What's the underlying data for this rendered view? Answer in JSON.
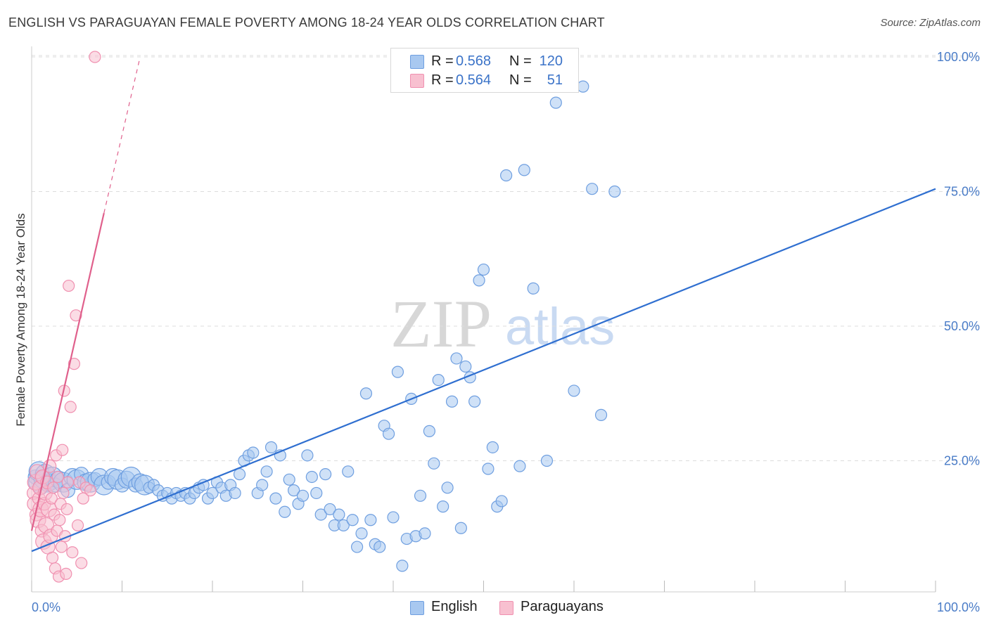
{
  "title": "ENGLISH VS PARAGUAYAN FEMALE POVERTY AMONG 18-24 YEAR OLDS CORRELATION CHART",
  "source": "Source: ZipAtlas.com",
  "watermark": {
    "zip": "ZIP",
    "atlas": "atlas"
  },
  "legend": {
    "english": {
      "r_label": "R =",
      "r_value": "0.568",
      "n_label": "N =",
      "n_value": "120"
    },
    "paraguayan": {
      "r_label": "R =",
      "r_value": "0.564",
      "n_label": "N =",
      "n_value": "51"
    }
  },
  "bottom_legend": {
    "english": "English",
    "paraguayan": "Paraguayans"
  },
  "colors": {
    "english_fill": "#a8c8f0",
    "english_stroke": "#6f9fe0",
    "english_line": "#2f6fd0",
    "paraguayan_fill": "#f8c0d0",
    "paraguayan_stroke": "#f090b0",
    "paraguayan_line": "#e0608c",
    "grid": "#dddddd",
    "axis_text": "#4a7cc7"
  },
  "chart_data": {
    "type": "scatter",
    "title": "ENGLISH VS PARAGUAYAN FEMALE POVERTY AMONG 18-24 YEAR OLDS CORRELATION CHART",
    "xlabel": "",
    "ylabel": "Female Poverty Among 18-24 Year Olds",
    "xlim": [
      0,
      100
    ],
    "ylim": [
      0,
      102
    ],
    "x_tick_labels": [
      "0.0%",
      "100.0%"
    ],
    "y_ticks": [
      25,
      50,
      75,
      100
    ],
    "y_tick_labels": [
      "25.0%",
      "50.0%",
      "75.0%",
      "100.0%"
    ],
    "grid": true,
    "legend_position": "top-center",
    "series": [
      {
        "name": "English",
        "R": 0.568,
        "N": 120,
        "trend": {
          "x": [
            0,
            100
          ],
          "y": [
            8.2,
            75.5
          ],
          "style": "solid"
        },
        "points": [
          [
            0.4,
            22.0
          ],
          [
            0.6,
            21.0
          ],
          [
            0.8,
            23.0
          ],
          [
            1.0,
            20.0
          ],
          [
            1.2,
            21.5
          ],
          [
            1.5,
            22.5
          ],
          [
            1.8,
            20.5
          ],
          [
            2.0,
            21.0
          ],
          [
            2.3,
            22.0
          ],
          [
            2.6,
            20.5
          ],
          [
            3.0,
            21.5
          ],
          [
            3.5,
            21.0
          ],
          [
            4.0,
            19.5
          ],
          [
            4.5,
            22.0
          ],
          [
            5.0,
            21.5
          ],
          [
            5.5,
            22.5
          ],
          [
            6.0,
            21.0
          ],
          [
            6.5,
            21.0
          ],
          [
            7.0,
            21.5
          ],
          [
            7.5,
            22.0
          ],
          [
            8.0,
            20.5
          ],
          [
            8.5,
            21.0
          ],
          [
            9.0,
            22.0
          ],
          [
            9.5,
            21.5
          ],
          [
            10.0,
            20.5
          ],
          [
            10.5,
            21.5
          ],
          [
            11.0,
            22.0
          ],
          [
            11.5,
            20.5
          ],
          [
            12.0,
            21.0
          ],
          [
            12.5,
            20.5
          ],
          [
            13.0,
            20.0
          ],
          [
            13.5,
            20.5
          ],
          [
            14.0,
            19.5
          ],
          [
            14.5,
            18.5
          ],
          [
            15.0,
            19.0
          ],
          [
            15.5,
            18.0
          ],
          [
            16.0,
            19.0
          ],
          [
            16.5,
            18.5
          ],
          [
            17.0,
            19.0
          ],
          [
            17.5,
            18.0
          ],
          [
            18.0,
            19.0
          ],
          [
            18.5,
            20.0
          ],
          [
            19.0,
            20.5
          ],
          [
            19.5,
            18.0
          ],
          [
            20.0,
            19.0
          ],
          [
            20.5,
            21.0
          ],
          [
            21.0,
            20.0
          ],
          [
            21.5,
            18.5
          ],
          [
            22.0,
            20.5
          ],
          [
            22.5,
            19.0
          ],
          [
            23.0,
            22.5
          ],
          [
            23.5,
            25.0
          ],
          [
            24.0,
            26.0
          ],
          [
            24.5,
            26.5
          ],
          [
            25.0,
            19.0
          ],
          [
            25.5,
            20.5
          ],
          [
            26.0,
            23.0
          ],
          [
            26.5,
            27.5
          ],
          [
            27.0,
            18.0
          ],
          [
            27.5,
            26.0
          ],
          [
            28.0,
            15.5
          ],
          [
            28.5,
            21.5
          ],
          [
            29.0,
            19.5
          ],
          [
            29.5,
            17.0
          ],
          [
            30.0,
            18.5
          ],
          [
            30.5,
            26.0
          ],
          [
            31.0,
            22.0
          ],
          [
            31.5,
            19.0
          ],
          [
            32.0,
            15.0
          ],
          [
            32.5,
            22.5
          ],
          [
            33.0,
            16.0
          ],
          [
            33.5,
            13.0
          ],
          [
            34.0,
            15.0
          ],
          [
            34.5,
            13.0
          ],
          [
            35.0,
            23.0
          ],
          [
            35.5,
            14.0
          ],
          [
            36.0,
            9.0
          ],
          [
            36.5,
            11.5
          ],
          [
            37.0,
            37.5
          ],
          [
            37.5,
            14.0
          ],
          [
            38.0,
            9.5
          ],
          [
            38.5,
            9.0
          ],
          [
            39.0,
            31.5
          ],
          [
            39.5,
            30.0
          ],
          [
            40.0,
            14.5
          ],
          [
            40.5,
            41.5
          ],
          [
            41.0,
            5.5
          ],
          [
            41.5,
            10.5
          ],
          [
            42.0,
            36.5
          ],
          [
            42.5,
            11.0
          ],
          [
            43.0,
            18.5
          ],
          [
            43.5,
            11.5
          ],
          [
            44.0,
            30.5
          ],
          [
            44.5,
            24.5
          ],
          [
            45.0,
            40.0
          ],
          [
            45.5,
            16.5
          ],
          [
            46.0,
            20.0
          ],
          [
            46.5,
            36.0
          ],
          [
            47.0,
            44.0
          ],
          [
            47.5,
            12.5
          ],
          [
            48.0,
            42.5
          ],
          [
            48.5,
            40.5
          ],
          [
            49.0,
            36.0
          ],
          [
            49.5,
            58.5
          ],
          [
            50.0,
            60.5
          ],
          [
            50.5,
            23.5
          ],
          [
            51.0,
            27.5
          ],
          [
            51.5,
            16.5
          ],
          [
            52.0,
            17.5
          ],
          [
            52.5,
            78.0
          ],
          [
            54.0,
            24.0
          ],
          [
            54.5,
            79.0
          ],
          [
            55.5,
            57.0
          ],
          [
            57.0,
            25.0
          ],
          [
            58.0,
            91.5
          ],
          [
            60.0,
            38.0
          ],
          [
            61.0,
            94.5
          ],
          [
            62.0,
            75.5
          ],
          [
            63.0,
            33.5
          ],
          [
            64.5,
            75.0
          ]
        ]
      },
      {
        "name": "Paraguayans",
        "R": 0.564,
        "N": 51,
        "trend": {
          "x": [
            0,
            8.0
          ],
          "y": [
            12.0,
            71.0
          ],
          "style": "solid",
          "extension": {
            "x": [
              8.0,
              12.0
            ],
            "y": [
              71.0,
              100.0
            ],
            "style": "dashed"
          }
        },
        "points": [
          [
            0.2,
            19.0
          ],
          [
            0.3,
            17.0
          ],
          [
            0.4,
            21.0
          ],
          [
            0.5,
            15.0
          ],
          [
            0.6,
            23.0
          ],
          [
            0.7,
            14.0
          ],
          [
            0.8,
            18.0
          ],
          [
            0.9,
            20.0
          ],
          [
            1.0,
            16.0
          ],
          [
            1.1,
            12.0
          ],
          [
            1.2,
            22.0
          ],
          [
            1.3,
            10.0
          ],
          [
            1.4,
            17.0
          ],
          [
            1.5,
            19.0
          ],
          [
            1.6,
            13.0
          ],
          [
            1.7,
            21.0
          ],
          [
            1.8,
            9.0
          ],
          [
            1.9,
            16.0
          ],
          [
            2.0,
            24.0
          ],
          [
            2.1,
            11.0
          ],
          [
            2.2,
            18.0
          ],
          [
            2.3,
            7.0
          ],
          [
            2.4,
            20.0
          ],
          [
            2.5,
            15.0
          ],
          [
            2.6,
            5.0
          ],
          [
            2.7,
            26.0
          ],
          [
            2.8,
            12.0
          ],
          [
            2.9,
            22.0
          ],
          [
            3.0,
            3.5
          ],
          [
            3.1,
            14.0
          ],
          [
            3.2,
            17.0
          ],
          [
            3.3,
            9.0
          ],
          [
            3.4,
            27.0
          ],
          [
            3.5,
            19.0
          ],
          [
            3.6,
            38.0
          ],
          [
            3.7,
            11.0
          ],
          [
            3.8,
            4.0
          ],
          [
            3.9,
            16.0
          ],
          [
            4.0,
            21.0
          ],
          [
            4.1,
            57.5
          ],
          [
            4.3,
            35.0
          ],
          [
            4.5,
            8.0
          ],
          [
            4.7,
            43.0
          ],
          [
            4.9,
            52.0
          ],
          [
            5.1,
            13.0
          ],
          [
            5.3,
            21.0
          ],
          [
            5.5,
            6.0
          ],
          [
            5.7,
            18.0
          ],
          [
            6.0,
            20.0
          ],
          [
            6.5,
            19.5
          ],
          [
            7.0,
            100.0
          ]
        ]
      }
    ]
  }
}
